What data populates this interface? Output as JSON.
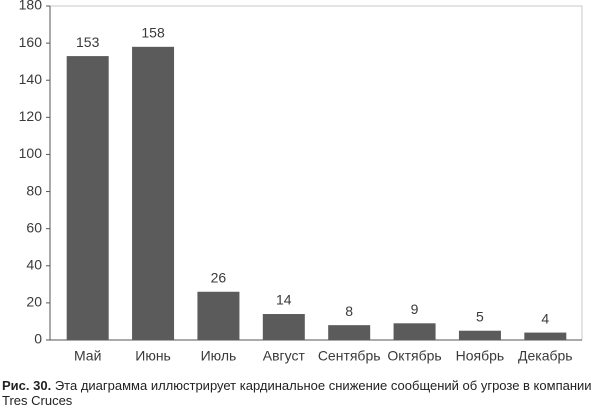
{
  "chart_data": {
    "type": "bar",
    "categories": [
      "Май",
      "Июнь",
      "Июль",
      "Август",
      "Сентябрь",
      "Октябрь",
      "Ноябрь",
      "Декабрь"
    ],
    "values": [
      153,
      158,
      26,
      14,
      8,
      9,
      5,
      4
    ],
    "color": "#5b5b5b",
    "ylim": [
      0,
      180
    ],
    "yticks": [
      0,
      20,
      40,
      60,
      80,
      100,
      120,
      140,
      160,
      180
    ],
    "grid": false,
    "caption_label": "Рис. 30.",
    "caption": "Эта диаграмма иллюстрирует кардинальное снижение сообщений об угрозе в компании Tres Cruces"
  }
}
